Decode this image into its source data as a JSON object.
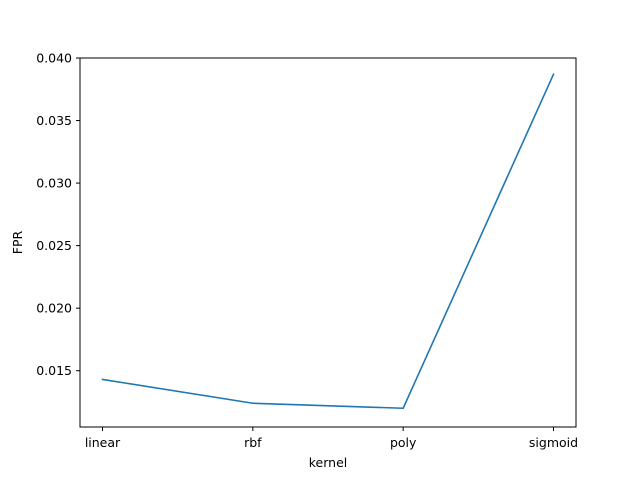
{
  "chart_data": {
    "type": "line",
    "categories": [
      "linear",
      "rbf",
      "poly",
      "sigmoid"
    ],
    "values": [
      0.0143,
      0.0124,
      0.012,
      0.0387
    ],
    "xlabel": "kernel",
    "ylabel": "FPR",
    "ylim": [
      0.0105,
      0.04
    ],
    "yticks": [
      0.015,
      0.02,
      0.025,
      0.03,
      0.035,
      0.04
    ],
    "ytick_labels": [
      "0.015",
      "0.020",
      "0.025",
      "0.030",
      "0.035",
      "0.040"
    ],
    "grid": false,
    "line_color": "#1f77b4"
  }
}
